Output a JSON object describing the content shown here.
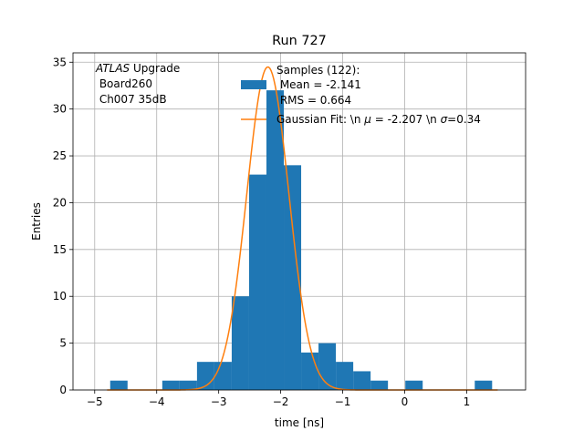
{
  "chart_data": {
    "type": "bar",
    "title": "Run 727",
    "xlabel": "time [ns]",
    "ylabel": "Entries",
    "xlim": [
      -5.35,
      1.95
    ],
    "ylim": [
      0,
      36
    ],
    "grid": true,
    "x_ticks": [
      -5,
      -4,
      -3,
      -2,
      -1,
      0,
      1
    ],
    "x_tick_labels": [
      "−5",
      "−4",
      "−3",
      "−2",
      "−1",
      "0",
      "1"
    ],
    "y_ticks": [
      0,
      5,
      10,
      15,
      20,
      25,
      30,
      35
    ],
    "y_tick_labels": [
      "0",
      "5",
      "10",
      "15",
      "20",
      "25",
      "30",
      "35"
    ],
    "histogram": {
      "bin_width": 0.28,
      "bin_left_edges": [
        -4.75,
        -4.47,
        -4.19,
        -3.91,
        -3.63,
        -3.35,
        -3.07,
        -2.79,
        -2.51,
        -2.23,
        -1.95,
        -1.67,
        -1.39,
        -1.11,
        -0.83,
        -0.55,
        -0.27,
        0.01,
        0.29,
        0.57,
        0.85,
        1.13
      ],
      "counts": [
        1,
        0,
        0,
        1,
        1,
        3,
        3,
        10,
        23,
        32,
        24,
        4,
        5,
        3,
        2,
        1,
        0,
        1,
        0,
        0,
        0,
        1
      ],
      "color": "#1f77b4"
    },
    "fit": {
      "type": "gaussian",
      "mu": -2.207,
      "sigma": 0.34,
      "peak": 34.5,
      "color": "#ff7f0e"
    },
    "annotation": {
      "italic": "ATLAS",
      "rest": " Upgrade",
      "line2": " Board260",
      "line3": " Ch007 35dB"
    },
    "legend": {
      "position": "top-right",
      "samples_line1": "Samples (122):",
      "samples_line2": " Mean = -2.141",
      "samples_line3": " RMS = 0.664",
      "fit_label_a": "Gaussian Fit: \\n ",
      "fit_mu_symbol": "μ",
      "fit_label_b": " = -2.207 \\n ",
      "fit_sigma_symbol": "σ",
      "fit_label_c": "=0.34"
    }
  }
}
